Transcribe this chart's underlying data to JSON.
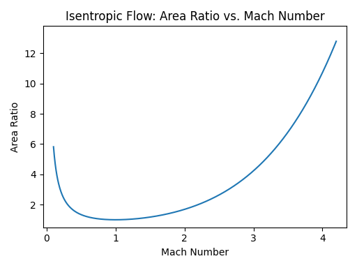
{
  "title": "Isentropic Flow: Area Ratio vs. Mach Number",
  "xlabel": "Mach Number",
  "ylabel": "Area Ratio",
  "gamma": 1.4,
  "M_start": 0.1,
  "M_end": 4.2,
  "num_points": 1000,
  "line_color": "#1f77b4",
  "line_width": 1.5,
  "xlim": [
    -0.05,
    4.35
  ],
  "ylim": [
    0.5,
    13.8
  ],
  "figsize": [
    5.12,
    3.84
  ],
  "dpi": 100,
  "title_fontsize": 12,
  "xticks": [
    0,
    1,
    2,
    3,
    4
  ],
  "yticks": [
    2,
    4,
    6,
    8,
    10,
    12
  ]
}
